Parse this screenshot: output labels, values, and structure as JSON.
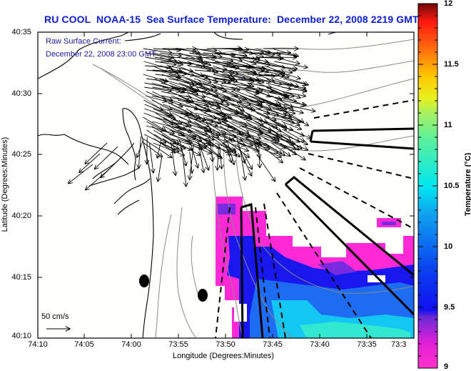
{
  "title": "RU COOL  NOAA-15  Sea Surface Temperature:  December 22, 2008 2219 GMT",
  "current_overlay": {
    "label_line1": "Raw Surface Current:",
    "label_line2": "December 22, 2008 23:00 GMT",
    "scale_label": "50 cm/s"
  },
  "axes": {
    "xlabel": "Longitude (Degrees:Minutes)",
    "ylabel": "Latitude (Degrees:Minutes)",
    "xticks": [
      "74:10",
      "74:05",
      "74:00",
      "73:55",
      "73:50",
      "73:45",
      "73:40",
      "73:35",
      "73:3"
    ],
    "yticks": [
      "40:35",
      "40:30",
      "40:25",
      "40:20",
      "40:15",
      "40:10"
    ]
  },
  "colorbar": {
    "title": "Temperature (°C)",
    "ticks": [
      "12",
      "11.5",
      "11",
      "10.5",
      "10",
      "9.5",
      "9"
    ],
    "range": [
      9,
      12
    ]
  },
  "colors": {
    "title": "#0c1ed0",
    "overlay_text": "#1a1aa0",
    "coast": "#000000",
    "bathymetry": "#8a8a8a"
  }
}
